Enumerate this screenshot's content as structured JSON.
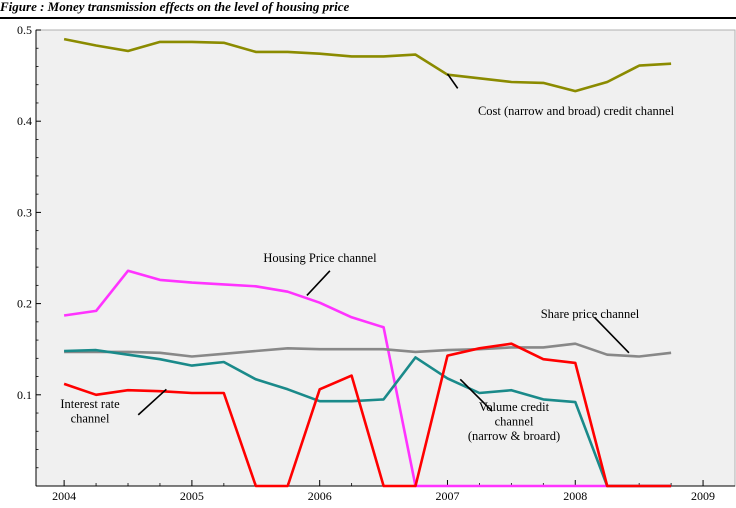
{
  "caption": "Figure   : Money transmission effects on the level of housing price",
  "chart_data": {
    "type": "line",
    "title": "",
    "xlabel": "",
    "ylabel": "",
    "xlim": [
      2003.78,
      2009.25
    ],
    "ylim": [
      0,
      0.5
    ],
    "x_ticks": [
      "2004",
      "2005",
      "2006",
      "2007",
      "2008",
      "2009"
    ],
    "y_ticks": [
      "0.5",
      "0.4",
      "0.3",
      "0.2",
      "0.1"
    ],
    "grid": false,
    "background": "#f0f0f0",
    "series": [
      {
        "key": "cost",
        "color": "#8b8b00",
        "x": [
          2004.0,
          2004.25,
          2004.5,
          2004.75,
          2005.0,
          2005.25,
          2005.5,
          2005.75,
          2006.0,
          2006.25,
          2006.5,
          2006.75,
          2007.0,
          2007.25,
          2007.5,
          2007.75,
          2008.0,
          2008.25,
          2008.5,
          2008.75
        ],
        "y": [
          0.49,
          0.483,
          0.477,
          0.487,
          0.487,
          0.486,
          0.476,
          0.476,
          0.474,
          0.471,
          0.471,
          0.473,
          0.451,
          0.447,
          0.443,
          0.442,
          0.433,
          0.443,
          0.461,
          0.463
        ]
      },
      {
        "key": "housing",
        "color": "#ff33ff",
        "x": [
          2004.0,
          2004.25,
          2004.5,
          2004.75,
          2005.0,
          2005.25,
          2005.5,
          2005.75,
          2006.0,
          2006.25,
          2006.5,
          2006.75,
          2007.0,
          2007.25,
          2007.5,
          2007.75,
          2008.0,
          2008.25,
          2008.5,
          2008.75
        ],
        "y": [
          0.187,
          0.192,
          0.236,
          0.226,
          0.223,
          0.221,
          0.219,
          0.213,
          0.201,
          0.185,
          0.174,
          0.0,
          0.0,
          0.0,
          0.0,
          0.0,
          0.0,
          0.0,
          0.0,
          0.0
        ]
      },
      {
        "key": "share",
        "color": "#888888",
        "x": [
          2004.0,
          2004.25,
          2004.5,
          2004.75,
          2005.0,
          2005.25,
          2005.5,
          2005.75,
          2006.0,
          2006.25,
          2006.5,
          2006.75,
          2007.0,
          2007.25,
          2007.5,
          2007.75,
          2008.0,
          2008.25,
          2008.5,
          2008.75
        ],
        "y": [
          0.147,
          0.147,
          0.147,
          0.146,
          0.142,
          0.145,
          0.148,
          0.151,
          0.15,
          0.15,
          0.15,
          0.147,
          0.149,
          0.15,
          0.152,
          0.152,
          0.156,
          0.144,
          0.142,
          0.146
        ]
      },
      {
        "key": "volume",
        "color": "#1a8a8a",
        "x": [
          2004.0,
          2004.25,
          2004.5,
          2004.75,
          2005.0,
          2005.25,
          2005.5,
          2005.75,
          2006.0,
          2006.25,
          2006.5,
          2006.75,
          2007.0,
          2007.25,
          2007.5,
          2007.75,
          2008.0,
          2008.25,
          2008.5,
          2008.75
        ],
        "y": [
          0.148,
          0.149,
          0.144,
          0.139,
          0.132,
          0.136,
          0.117,
          0.106,
          0.093,
          0.093,
          0.095,
          0.141,
          0.118,
          0.102,
          0.105,
          0.095,
          0.092,
          0.0,
          0.0,
          0.0
        ]
      },
      {
        "key": "interest",
        "color": "#ff0000",
        "x": [
          2004.0,
          2004.25,
          2004.5,
          2004.75,
          2005.0,
          2005.25,
          2005.5,
          2005.75,
          2006.0,
          2006.25,
          2006.5,
          2006.75,
          2007.0,
          2007.25,
          2007.5,
          2007.75,
          2008.0,
          2008.25,
          2008.5,
          2008.75
        ],
        "y": [
          0.112,
          0.1,
          0.105,
          0.104,
          0.102,
          0.102,
          0.0,
          0.0,
          0.106,
          0.121,
          0.0,
          0.0,
          0.143,
          0.151,
          0.156,
          0.139,
          0.135,
          0.0,
          0.0,
          0.0
        ]
      }
    ],
    "annotations": [
      {
        "key": "cost",
        "lines": [
          "Cost (narrow and broad) credit channel"
        ],
        "arrow_from": [
          2007.08,
          0.436
        ],
        "arrow_to": [
          2007.0,
          0.452
        ]
      },
      {
        "key": "housing",
        "lines": [
          "Housing Price channel"
        ],
        "arrow_from": [
          2006.08,
          0.236
        ],
        "arrow_to": [
          2005.9,
          0.209
        ]
      },
      {
        "key": "share",
        "lines": [
          "Share price channel"
        ],
        "arrow_from": [
          2008.15,
          0.185
        ],
        "arrow_to": [
          2008.42,
          0.146
        ]
      },
      {
        "key": "interest",
        "lines": [
          "Interest rate",
          "channel"
        ],
        "arrow_from": [
          2004.58,
          0.078
        ],
        "arrow_to": [
          2004.8,
          0.106
        ]
      },
      {
        "key": "volume",
        "lines": [
          "Volume credit",
          "channel",
          "(narrow & broard)"
        ],
        "arrow_from": [
          2007.35,
          0.082
        ],
        "arrow_to": [
          2007.1,
          0.117
        ]
      }
    ]
  }
}
